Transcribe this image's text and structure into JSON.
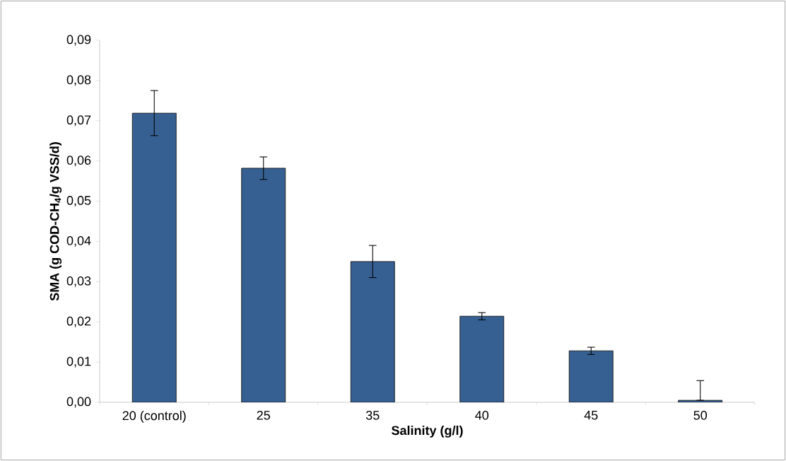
{
  "chart_data": {
    "type": "bar",
    "xlabel": "Salinity (g/l)",
    "ylabel": "SMA (g COD-CH$_{4}$/g VSS/d)",
    "categories": [
      "20 (control)",
      "25",
      "35",
      "40",
      "45",
      "50"
    ],
    "values": [
      0.0719,
      0.0582,
      0.035,
      0.0214,
      0.0128,
      0.0005
    ],
    "errors": [
      0.0056,
      0.0028,
      0.004,
      0.0009,
      0.0009,
      [
        0.0005,
        0.0054
      ]
    ],
    "color": "#376092",
    "ylim": [
      0,
      0.09
    ],
    "yticks": [
      {
        "value": 0,
        "label": "0,00"
      },
      {
        "value": 0.01,
        "label": "0,01"
      },
      {
        "value": 0.02,
        "label": "0,02"
      },
      {
        "value": 0.03,
        "label": "0,03"
      },
      {
        "value": 0.04,
        "label": "0,04"
      },
      {
        "value": 0.05,
        "label": "0,05"
      },
      {
        "value": 0.06,
        "label": "0,06"
      },
      {
        "value": 0.07,
        "label": "0,07"
      },
      {
        "value": 0.08,
        "label": "0,08"
      },
      {
        "value": 0.09,
        "label": "0,09"
      }
    ],
    "grid": false
  }
}
